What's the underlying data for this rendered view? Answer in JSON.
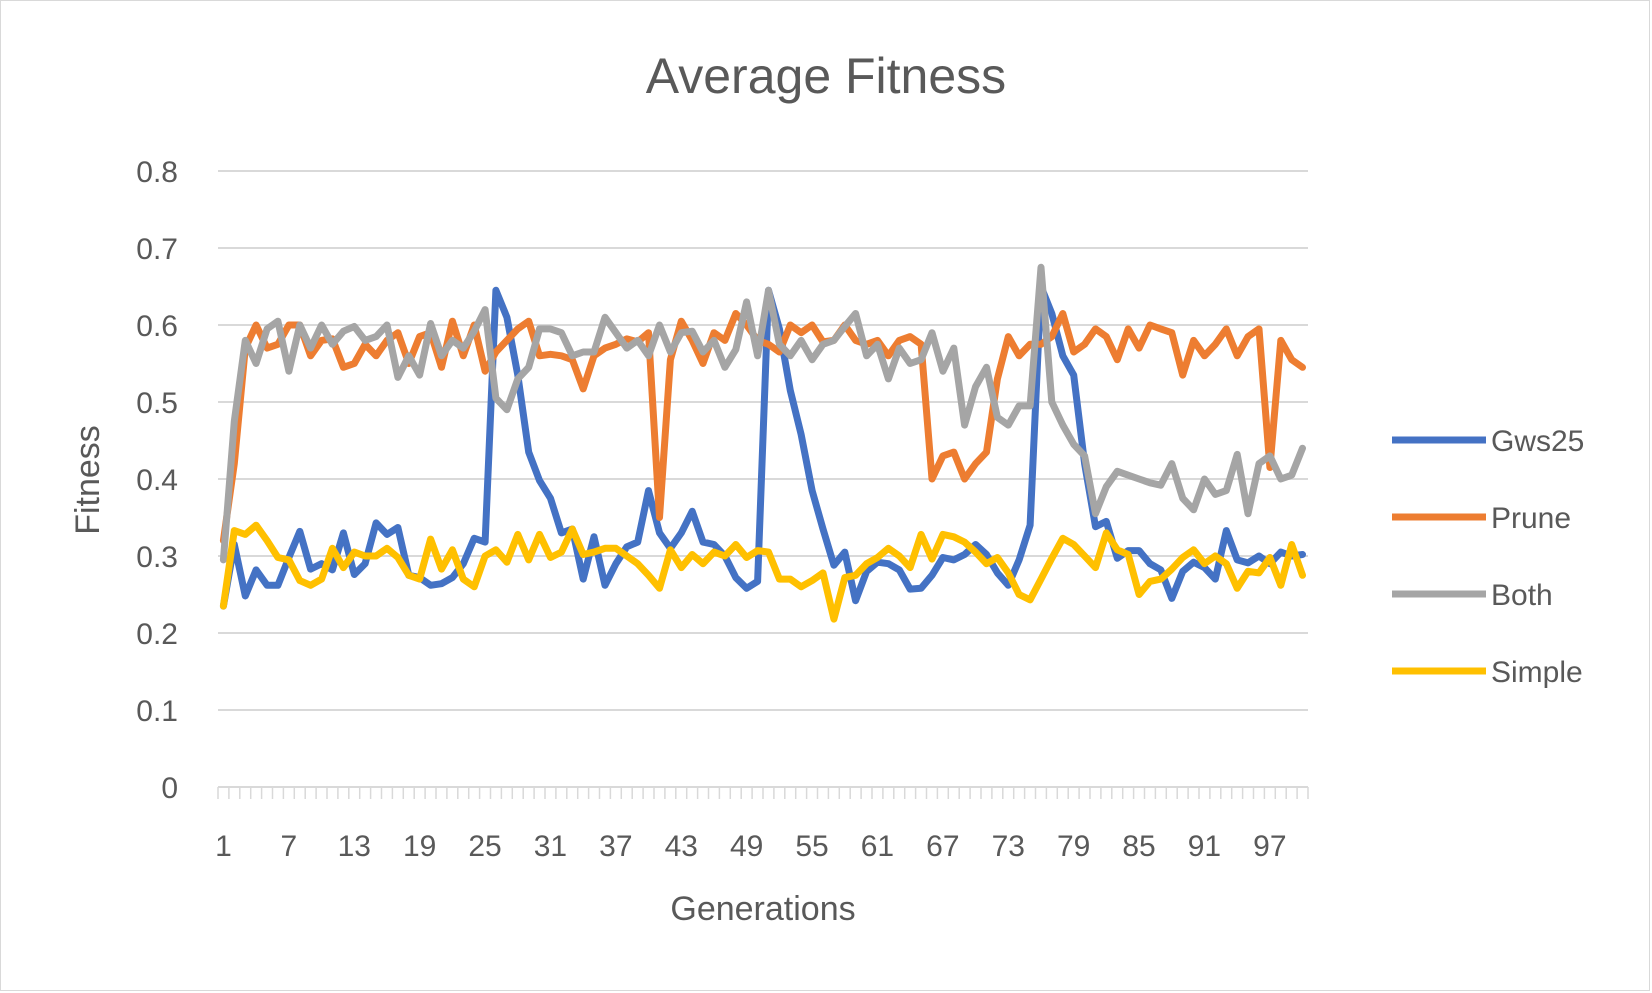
{
  "chart_data": {
    "type": "line",
    "title": "Average Fitness",
    "xlabel": "Generations",
    "ylabel": "Fitness",
    "ylim": [
      0,
      0.8
    ],
    "yticks": [
      "0",
      "0.1",
      "0.2",
      "0.3",
      "0.4",
      "0.5",
      "0.6",
      "0.7",
      "0.8"
    ],
    "x_tick_labels": [
      "1",
      "7",
      "13",
      "19",
      "25",
      "31",
      "37",
      "43",
      "49",
      "55",
      "61",
      "67",
      "73",
      "79",
      "85",
      "91",
      "97"
    ],
    "x_count": 100,
    "grid": true,
    "legend_position": "right",
    "series": [
      {
        "name": "Gws25",
        "color": "#4472C4",
        "values": [
          0.235,
          0.315,
          0.248,
          0.282,
          0.262,
          0.262,
          0.298,
          0.332,
          0.283,
          0.29,
          0.282,
          0.33,
          0.276,
          0.29,
          0.343,
          0.328,
          0.337,
          0.275,
          0.272,
          0.262,
          0.264,
          0.272,
          0.29,
          0.323,
          0.318,
          0.645,
          0.61,
          0.535,
          0.435,
          0.398,
          0.375,
          0.33,
          0.335,
          0.27,
          0.325,
          0.262,
          0.29,
          0.312,
          0.318,
          0.385,
          0.33,
          0.31,
          0.33,
          0.358,
          0.318,
          0.315,
          0.3,
          0.272,
          0.258,
          0.267,
          0.645,
          0.595,
          0.515,
          0.458,
          0.385,
          0.335,
          0.288,
          0.305,
          0.242,
          0.28,
          0.292,
          0.29,
          0.282,
          0.257,
          0.258,
          0.275,
          0.298,
          0.295,
          0.302,
          0.315,
          0.302,
          0.278,
          0.262,
          0.295,
          0.34,
          0.65,
          0.615,
          0.56,
          0.535,
          0.42,
          0.338,
          0.345,
          0.297,
          0.307,
          0.307,
          0.29,
          0.282,
          0.245,
          0.28,
          0.292,
          0.285,
          0.27,
          0.333,
          0.295,
          0.291,
          0.3,
          0.29,
          0.305,
          0.3,
          0.302
        ]
      },
      {
        "name": "Prune",
        "color": "#ED7D31",
        "values": [
          0.32,
          0.42,
          0.57,
          0.6,
          0.57,
          0.575,
          0.6,
          0.6,
          0.56,
          0.58,
          0.582,
          0.545,
          0.55,
          0.575,
          0.56,
          0.58,
          0.59,
          0.55,
          0.585,
          0.59,
          0.545,
          0.605,
          0.56,
          0.6,
          0.54,
          0.565,
          0.58,
          0.595,
          0.605,
          0.56,
          0.562,
          0.56,
          0.555,
          0.517,
          0.56,
          0.57,
          0.575,
          0.582,
          0.578,
          0.59,
          0.35,
          0.555,
          0.605,
          0.58,
          0.55,
          0.59,
          0.58,
          0.615,
          0.6,
          0.58,
          0.575,
          0.565,
          0.6,
          0.59,
          0.6,
          0.578,
          0.58,
          0.6,
          0.58,
          0.575,
          0.58,
          0.56,
          0.58,
          0.585,
          0.575,
          0.4,
          0.43,
          0.435,
          0.4,
          0.42,
          0.435,
          0.53,
          0.585,
          0.56,
          0.575,
          0.575,
          0.585,
          0.615,
          0.565,
          0.575,
          0.595,
          0.585,
          0.555,
          0.595,
          0.57,
          0.6,
          0.595,
          0.59,
          0.535,
          0.58,
          0.56,
          0.575,
          0.595,
          0.56,
          0.585,
          0.595,
          0.415,
          0.58,
          0.555,
          0.545
        ]
      },
      {
        "name": "Both",
        "color": "#A5A5A5",
        "values": [
          0.295,
          0.475,
          0.58,
          0.55,
          0.595,
          0.605,
          0.54,
          0.6,
          0.57,
          0.6,
          0.575,
          0.592,
          0.598,
          0.58,
          0.585,
          0.6,
          0.532,
          0.56,
          0.535,
          0.602,
          0.56,
          0.58,
          0.57,
          0.592,
          0.62,
          0.505,
          0.49,
          0.53,
          0.545,
          0.595,
          0.595,
          0.59,
          0.56,
          0.565,
          0.565,
          0.61,
          0.59,
          0.57,
          0.58,
          0.56,
          0.6,
          0.565,
          0.59,
          0.592,
          0.565,
          0.58,
          0.545,
          0.568,
          0.63,
          0.56,
          0.645,
          0.575,
          0.56,
          0.58,
          0.555,
          0.575,
          0.58,
          0.598,
          0.615,
          0.56,
          0.575,
          0.53,
          0.57,
          0.55,
          0.555,
          0.59,
          0.54,
          0.57,
          0.47,
          0.52,
          0.545,
          0.48,
          0.47,
          0.495,
          0.495,
          0.675,
          0.5,
          0.47,
          0.445,
          0.43,
          0.355,
          0.39,
          0.41,
          0.405,
          0.4,
          0.395,
          0.392,
          0.42,
          0.375,
          0.36,
          0.4,
          0.38,
          0.385,
          0.432,
          0.355,
          0.42,
          0.43,
          0.4,
          0.405,
          0.44
        ]
      },
      {
        "name": "Simple",
        "color": "#FFC000",
        "values": [
          0.235,
          0.333,
          0.328,
          0.34,
          0.32,
          0.298,
          0.295,
          0.268,
          0.262,
          0.27,
          0.31,
          0.285,
          0.305,
          0.3,
          0.3,
          0.31,
          0.298,
          0.275,
          0.27,
          0.322,
          0.283,
          0.308,
          0.27,
          0.26,
          0.3,
          0.308,
          0.292,
          0.328,
          0.295,
          0.328,
          0.298,
          0.305,
          0.335,
          0.302,
          0.305,
          0.31,
          0.31,
          0.3,
          0.29,
          0.275,
          0.258,
          0.308,
          0.285,
          0.302,
          0.29,
          0.305,
          0.3,
          0.315,
          0.298,
          0.307,
          0.305,
          0.27,
          0.27,
          0.26,
          0.268,
          0.278,
          0.218,
          0.272,
          0.275,
          0.29,
          0.298,
          0.31,
          0.3,
          0.285,
          0.328,
          0.296,
          0.328,
          0.325,
          0.318,
          0.305,
          0.29,
          0.298,
          0.278,
          0.25,
          0.243,
          0.27,
          0.297,
          0.323,
          0.315,
          0.3,
          0.285,
          0.33,
          0.308,
          0.302,
          0.25,
          0.267,
          0.27,
          0.283,
          0.298,
          0.308,
          0.29,
          0.3,
          0.29,
          0.258,
          0.28,
          0.278,
          0.298,
          0.262,
          0.315,
          0.275
        ]
      }
    ]
  }
}
